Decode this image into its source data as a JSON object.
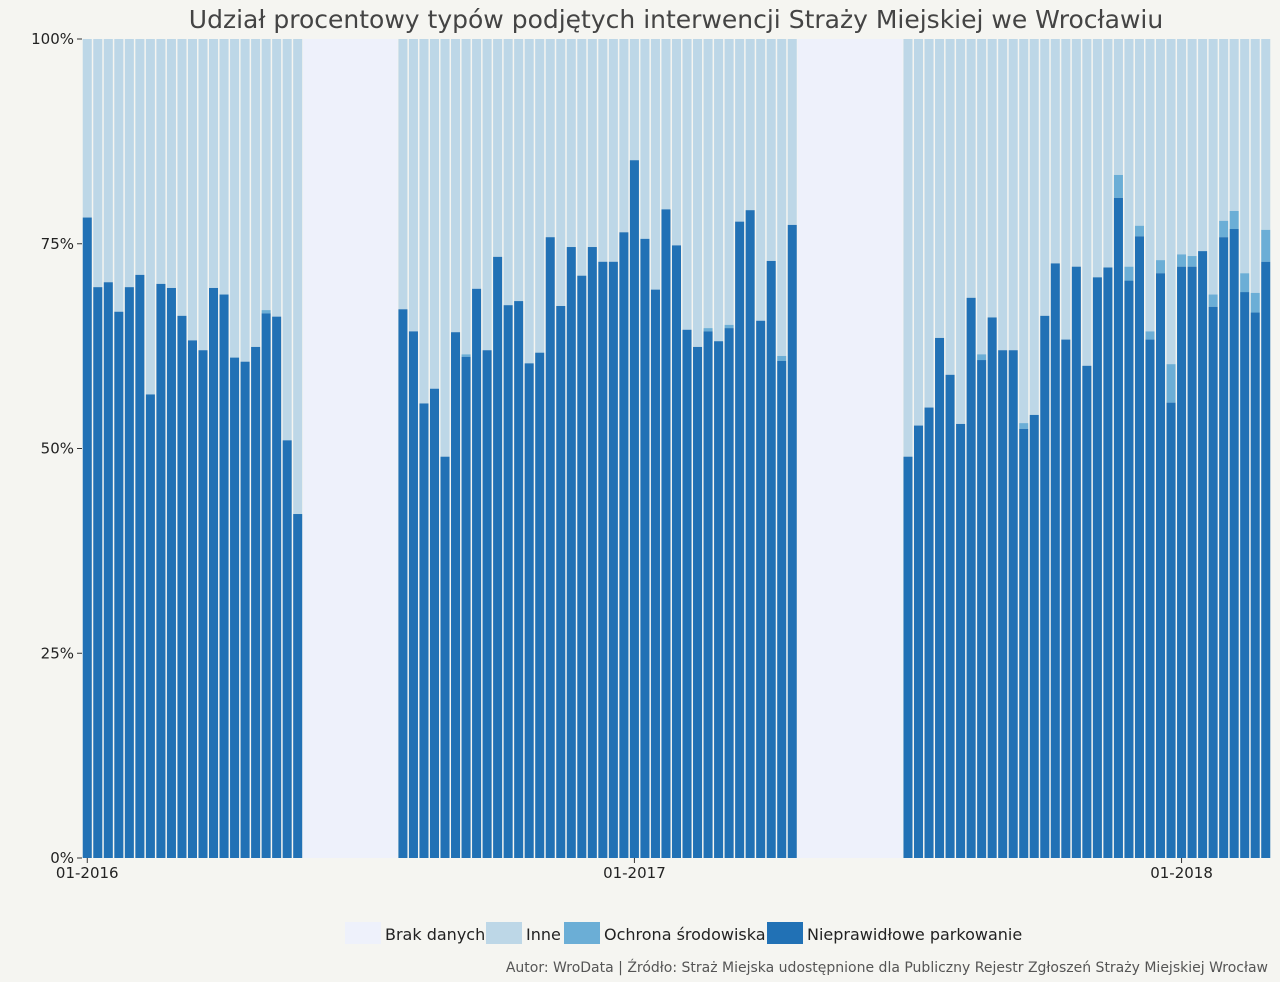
{
  "chart_data": {
    "type": "bar",
    "stacked": "percent",
    "title": "Udział procentowy typów podjętych interwencji Straży Miejskiej we Wrocławiu",
    "caption": "Autor: WroData | Źródło: Straż Miejska udostępnione dla Publiczny Rejestr Zgłoszeń Straży Miejskiej Wrocław",
    "colors": {
      "background": "#f5f5f1",
      "brak": "#eef1fb",
      "inne": "#bdd7e7",
      "ochrona": "#6baed6",
      "parkowanie": "#2171b5"
    },
    "ylim": [
      0,
      1
    ],
    "y_ticks": [
      {
        "value": 0,
        "label": "0%"
      },
      {
        "value": 0.25,
        "label": "25%"
      },
      {
        "value": 0.5,
        "label": "50%"
      },
      {
        "value": 0.75,
        "label": "75%"
      },
      {
        "value": 1,
        "label": "100%"
      }
    ],
    "x_ticks": [
      {
        "index": 0,
        "label": "01-2016"
      },
      {
        "index": 52,
        "label": "01-2017"
      },
      {
        "index": 104,
        "label": "01-2018"
      }
    ],
    "bar_count": 113,
    "legend": [
      {
        "key": "brak",
        "label": "Brak danych"
      },
      {
        "key": "inne",
        "label": "Inne"
      },
      {
        "key": "ochrona",
        "label": "Ochrona środowiska"
      },
      {
        "key": "parkowanie",
        "label": "Nieprawidłowe parkowanie"
      }
    ],
    "segments": [
      {
        "start": 0,
        "parkowanie": [
          0.782,
          0.697,
          0.703,
          0.667,
          0.697,
          0.712,
          0.566,
          0.701,
          0.696,
          0.662,
          0.632,
          0.62,
          0.696,
          0.688,
          0.611,
          0.606,
          0.624,
          0.665,
          0.661,
          0.51,
          0.42
        ],
        "ochrona": [
          0,
          0,
          0,
          0,
          0,
          0,
          0,
          0,
          0,
          0,
          0,
          0,
          0,
          0,
          0,
          0,
          0,
          0.004,
          0,
          0,
          0
        ]
      },
      {
        "start": 30,
        "parkowanie": [
          0.67,
          0.643,
          0.555,
          0.573,
          0.49,
          0.642,
          0.612,
          0.695,
          0.62,
          0.734,
          0.675,
          0.68,
          0.604,
          0.617,
          0.758,
          0.674,
          0.746,
          0.711,
          0.746,
          0.728,
          0.728,
          0.764,
          0.852,
          0.756,
          0.694,
          0.792,
          0.748,
          0.645,
          0.624,
          0.643,
          0.631,
          0.647,
          0.777,
          0.791,
          0.656,
          0.729,
          0.607,
          0.773
        ],
        "ochrona": [
          0,
          0,
          0,
          0,
          0,
          0,
          0.003,
          0,
          0,
          0,
          0,
          0,
          0,
          0,
          0,
          0,
          0,
          0,
          0,
          0,
          0,
          0,
          0,
          0,
          0,
          0,
          0,
          0,
          0,
          0.004,
          0,
          0.004,
          0,
          0,
          0,
          0,
          0.006,
          0
        ]
      },
      {
        "start": 78,
        "parkowanie": [
          0.49,
          0.528,
          0.55,
          0.635,
          0.59,
          0.53,
          0.684,
          0.608,
          0.66,
          0.62,
          0.62,
          0.524,
          0.541,
          0.662,
          0.726,
          0.633,
          0.722,
          0.601,
          0.709,
          0.721,
          0.806,
          0.705,
          0.759,
          0.633,
          0.714,
          0.556,
          0.722,
          0.722,
          0.741,
          0.673,
          0.758,
          0.768,
          0.691,
          0.666,
          0.728
        ],
        "ochrona": [
          0,
          0,
          0,
          0,
          0,
          0,
          0,
          0.007,
          0,
          0,
          0,
          0.007,
          0,
          0,
          0,
          0,
          0,
          0,
          0,
          0,
          0.028,
          0.017,
          0.013,
          0.01,
          0.016,
          0.047,
          0.015,
          0.013,
          0,
          0.015,
          0.02,
          0.022,
          0.023,
          0.024,
          0.039
        ]
      }
    ],
    "gaps": [
      {
        "start": 21,
        "end": 29
      },
      {
        "start": 68,
        "end": 77
      }
    ]
  }
}
